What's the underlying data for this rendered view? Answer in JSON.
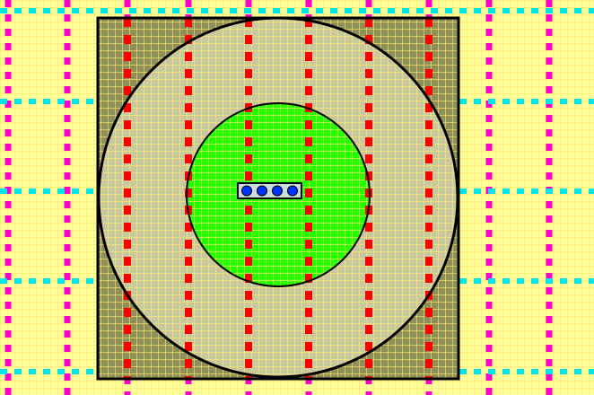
{
  "diagram": {
    "pin_count": 4,
    "colors": {
      "background": "#ffff99",
      "fine_grid": "#ffe66a",
      "background_grid_line_magenta": "#ff00cc",
      "background_grid_line_cyan": "#00e6e6",
      "square_fill": "#8f8f5a",
      "outer_circle_fill": "#c9c9a0",
      "inner_circle_fill": "#22ff00",
      "outline": "#000000",
      "red_dashes": "#ff0000",
      "pin_tray_fill": "#ccdddd",
      "pin_fill": "#0033ff"
    }
  }
}
